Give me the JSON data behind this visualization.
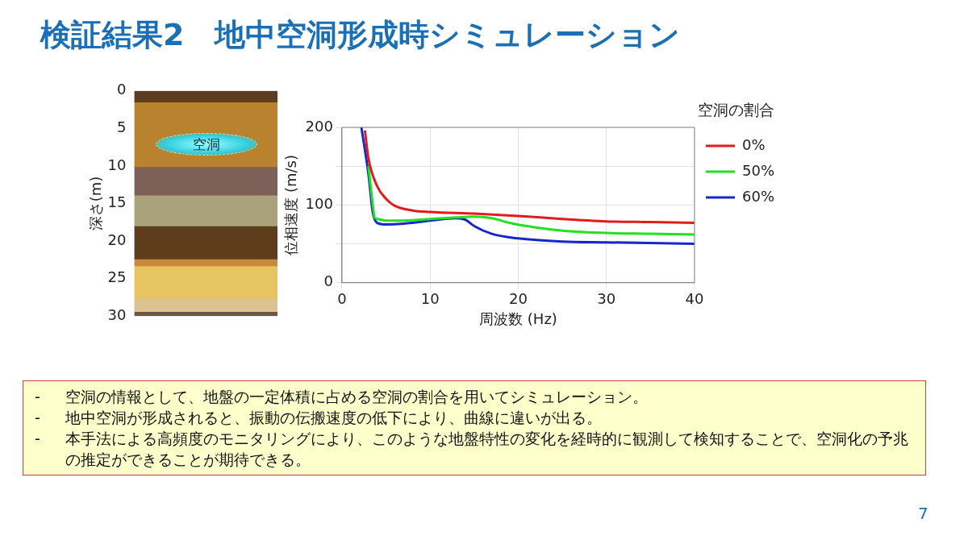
{
  "chart_data": [
    {
      "type": "bar",
      "stacked": true,
      "title": "検証結果2　地中空洞形成時シミュレーション",
      "ylabel": "深さ(m)",
      "ylim": [
        30,
        0
      ],
      "yticks": [
        0,
        5,
        10,
        15,
        20,
        25,
        30
      ],
      "tick_labels": "y",
      "categories": [
        null
      ],
      "series": [
        {
          "color": "#5a3d22",
          "values": [
            1.5
          ]
        },
        {
          "color": "#b9822f",
          "values": [
            8.6
          ]
        },
        {
          "color": "#7d6158",
          "values": [
            3.8
          ]
        },
        {
          "color": "#a9a27a",
          "values": [
            4.1
          ]
        },
        {
          "color": "#5e3d1c",
          "values": [
            4.4
          ]
        },
        {
          "color": "#c68a3a",
          "values": [
            0.9
          ]
        },
        {
          "color": "#e6c462",
          "values": [
            4.3
          ]
        },
        {
          "color": "#dcc290",
          "values": [
            1.8
          ]
        },
        {
          "color": "#6e5547",
          "values": [
            0.6
          ]
        }
      ],
      "annotations": [
        "空洞"
      ]
    },
    {
      "type": "line",
      "xlabel": "周波数 (Hz)",
      "ylabel": "位相速度 (m/s)",
      "legend_title": "空洞の割合",
      "legend": "right",
      "grid": true,
      "marker": "none",
      "line_style": "solid",
      "xlim": [
        0,
        40
      ],
      "xticks": [
        0,
        10,
        20,
        30,
        40
      ],
      "ylim": [
        0,
        200
      ],
      "yticks": [
        0,
        {
          "value": 50,
          "label": null
        },
        100,
        {
          "value": 150,
          "label": null
        },
        200
      ],
      "series": [
        {
          "name": "0%",
          "color": "#e31a1c",
          "x": [
            2.6,
            3,
            4,
            5,
            6,
            8,
            10,
            15,
            20,
            25,
            30,
            35,
            40
          ],
          "values": [
            196,
            160,
            124,
            108,
            99,
            93,
            91,
            89,
            86,
            82,
            79,
            78,
            77
          ]
        },
        {
          "name": "50%",
          "color": "#22e022",
          "x": [
            3,
            3.5,
            3.7,
            4,
            5,
            7,
            10,
            13,
            15,
            17,
            19,
            22,
            25,
            30,
            35,
            40
          ],
          "values": [
            150,
            100,
            84,
            82,
            80,
            80,
            82,
            84,
            85,
            83,
            77,
            71,
            67,
            64,
            63,
            62
          ]
        },
        {
          "name": "60%",
          "color": "#1428c8",
          "x": [
            2.2,
            3,
            3.5,
            4,
            5,
            7,
            10,
            13,
            14,
            15,
            17,
            20,
            25,
            30,
            40
          ],
          "values": [
            200,
            140,
            90,
            77,
            75,
            76,
            80,
            83,
            81,
            73,
            63,
            57,
            53,
            52,
            50
          ]
        }
      ],
      "annotations": [
        "-\t空洞の情報として、地盤の一定体積に占める空洞の割合を用いてシミュレーション。",
        "-\t地中空洞が形成されると、振動の伝搬速度の低下により、曲線に違いが出る。",
        "-\t本手法による高頻度のモニタリングにより、このような地盤特性の変化を経時的に観測して検知することで、空洞化の予兆の推定ができることが期待できる。",
        "7"
      ]
    }
  ]
}
